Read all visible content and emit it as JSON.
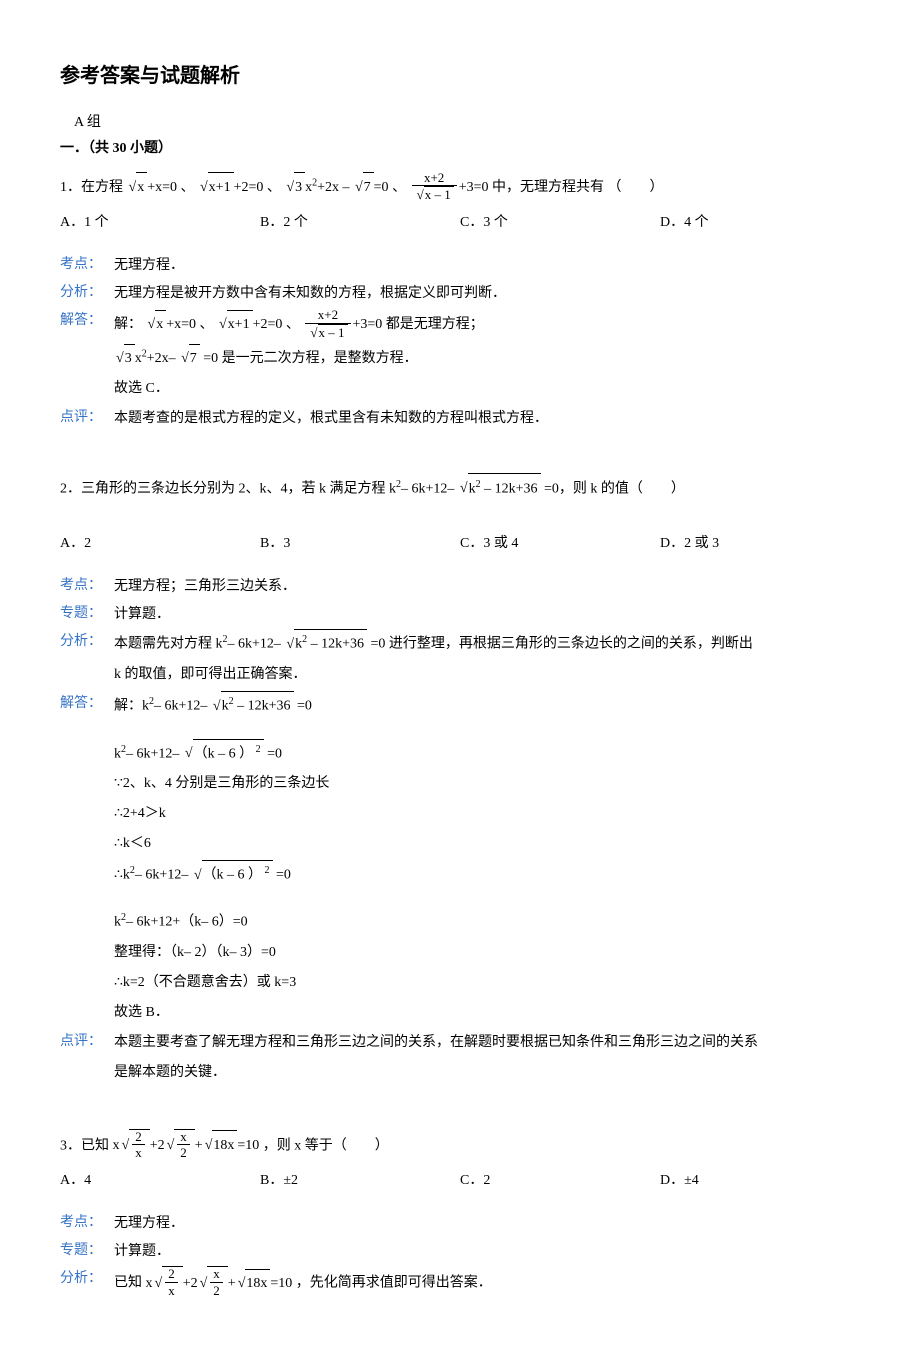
{
  "title": "参考答案与试题解析",
  "group": "A 组",
  "section_head": "一．（共 30 小题）",
  "labels": {
    "kaodian": "考点：",
    "zhuanti": "专题：",
    "fenxi": "分析：",
    "jieda": "解答：",
    "dianping": "点评："
  },
  "q1": {
    "stem_prefix": "1．在方程",
    "stem_suffix": "中，无理方程共有 （　　）",
    "eq1_a": "x",
    "eq1_b": "+x=0",
    "eq2_a": "x+1",
    "eq2_b": "+2=0",
    "eq3_a": "3",
    "eq3_b": "x",
    "eq3_c": "+2x –",
    "eq3_d": "7",
    "eq3_e": "=0",
    "eq4_num": "x+2",
    "eq4_den_a": "x – 1",
    "eq4_b": "+3=0",
    "sep": "、",
    "optA": "A．1 个",
    "optB": "B．2 个",
    "optC": "C．3 个",
    "optD": "D．4 个",
    "kaodian": "无理方程．",
    "fenxi": "无理方程是被开方数中含有未知数的方程，根据定义即可判断．",
    "jieda_prefix": "解：",
    "jieda_l1_suffix": "都是无理方程；",
    "jieda_l2_a": "3",
    "jieda_l2_b": "x",
    "jieda_l2_c": "+2x–",
    "jieda_l2_d": "7",
    "jieda_l2_suffix": "=0 是一元二次方程，是整数方程．",
    "jieda_l3": "故选 C．",
    "dianping": "本题考查的是根式方程的定义，根式里含有未知数的方程叫根式方程．"
  },
  "q2": {
    "stem_a": "2．三角形的三条边长分别为 2、k、4，若 k 满足方程 k",
    "stem_b": "– 6k+12–",
    "stem_sqrt": "k",
    "stem_sqrt_b": " – 12k+36",
    "stem_c": "=0，则 k 的值（　　）",
    "optA": "A．2",
    "optB": "B．3",
    "optC": "C．3 或 4",
    "optD": "D．2 或 3",
    "kaodian": "无理方程；三角形三边关系．",
    "zhuanti": "计算题．",
    "fenxi_a": "本题需先对方程 k",
    "fenxi_b": "– 6k+12–",
    "fenxi_sqrt": "k",
    "fenxi_sqrt_b": " – 12k+36",
    "fenxi_c": "=0 进行整理，再根据三角形的三条边长的之间的关系，判断出",
    "fenxi_l2": "k 的取值，即可得出正确答案．",
    "jieda_prefix": "解：k",
    "jieda_l1_a": "– 6k+12–",
    "jieda_l1_sqrt": "k",
    "jieda_l1_sqrt_b": " – 12k+36",
    "jieda_l1_c": "=0",
    "jieda_l2_a": "k",
    "jieda_l2_b": "– 6k+12–",
    "jieda_l2_sqrt": "（k – 6 ）",
    "jieda_l2_c": "=0",
    "jieda_l3": "∵2、k、4 分别是三角形的三条边长",
    "jieda_l4": "∴2+4＞k",
    "jieda_l5": "∴k＜6",
    "jieda_l6_a": "∴k",
    "jieda_l6_b": "– 6k+12–",
    "jieda_l6_sqrt": "（k – 6 ）",
    "jieda_l6_c": "=0",
    "jieda_l7_a": "k",
    "jieda_l7_b": "– 6k+12+（k– 6）=0",
    "jieda_l8": "整理得：（k– 2）（k– 3）=0",
    "jieda_l9": "∴k=2（不合题意舍去）或 k=3",
    "jieda_l10": "故选 B．",
    "dianping_l1": "本题主要考查了解无理方程和三角形三边之间的关系，在解题时要根据已知条件和三角形三边之间的关系",
    "dianping_l2": "是解本题的关键．"
  },
  "q3": {
    "stem_a": "3．已知",
    "stem_x": "x",
    "frac1_num": "2",
    "frac1_den": "x",
    "plus2": "+2",
    "frac2_num": "x",
    "frac2_den": "2",
    "plus": "+",
    "sqrt_last": "18x",
    "eq": "=10",
    "stem_c": "，则 x 等于（　　）",
    "optA": "A．4",
    "optB": "B．±2",
    "optC": "C．2",
    "optD": "D．±4",
    "kaodian": "无理方程．",
    "zhuanti": "计算题．",
    "fenxi_a": "已知",
    "fenxi_c": "，先化简再求值即可得出答案．"
  }
}
